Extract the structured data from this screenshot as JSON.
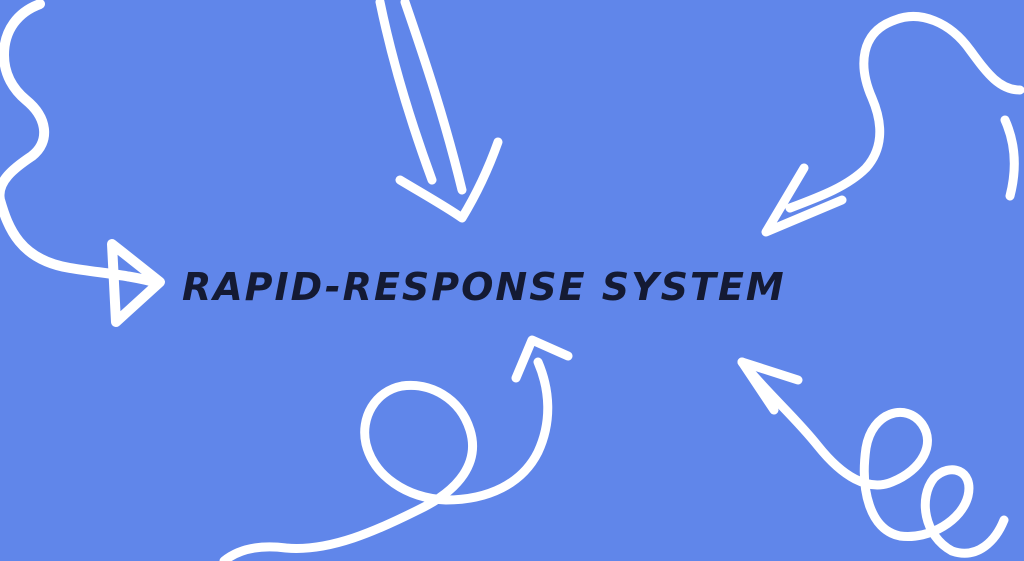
{
  "headline": "RAPID-RESPONSE SYSTEM",
  "colors": {
    "background": "#6086EA",
    "doodle": "#FFFFFF",
    "text": "#141A33"
  },
  "decorations": [
    "squiggle-arrow-left-icon",
    "straight-arrow-top-icon",
    "zigzag-arrow-top-right-icon",
    "loop-arrow-bottom-center-icon",
    "loop-arrow-bottom-right-icon"
  ]
}
